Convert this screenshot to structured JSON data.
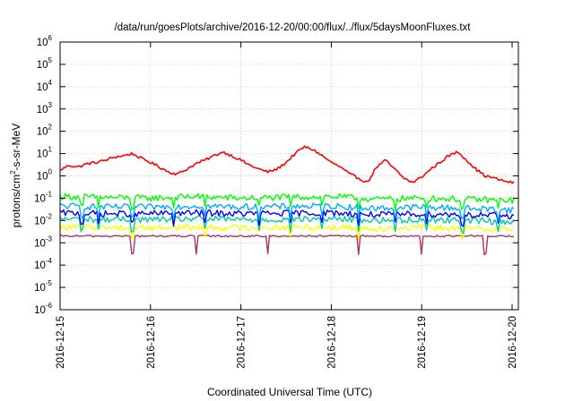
{
  "chart_data": {
    "type": "line",
    "title": "/data/run/goesPlots/archive/2016-12-20/00:00/flux/../flux/5daysMoonFluxes.txt",
    "xlabel": "Coordinated Universal Time (UTC)",
    "ylabel_parts": {
      "base": "protons/cm",
      "sup": "2",
      "rest": "-s-sr-MeV"
    },
    "x_ticks": [
      "2016-12-15",
      "2016-12-16",
      "2016-12-17",
      "2016-12-18",
      "2016-12-19",
      "2016-12-20"
    ],
    "x_range": [
      "2016-12-15",
      "2016-12-20 00:30"
    ],
    "y_scale": "log",
    "ylim": [
      1e-06,
      1000000.0
    ],
    "y_ticks": [
      {
        "base": "10",
        "exp": "-6"
      },
      {
        "base": "10",
        "exp": "-5"
      },
      {
        "base": "10",
        "exp": "-4"
      },
      {
        "base": "10",
        "exp": "-3"
      },
      {
        "base": "10",
        "exp": "-2"
      },
      {
        "base": "10",
        "exp": "-1"
      },
      {
        "base": "10",
        "exp": "0"
      },
      {
        "base": "10",
        "exp": "1"
      },
      {
        "base": "10",
        "exp": "2"
      },
      {
        "base": "10",
        "exp": "3"
      },
      {
        "base": "10",
        "exp": "4"
      },
      {
        "base": "10",
        "exp": "5"
      },
      {
        "base": "10",
        "exp": "6"
      }
    ],
    "grid": true,
    "series": [
      {
        "color": "#ff0000",
        "x_days": [
          0,
          0.1,
          0.2,
          0.3,
          0.4,
          0.5,
          0.6,
          0.7,
          0.8,
          0.9,
          1.0,
          1.1,
          1.2,
          1.3,
          1.4,
          1.5,
          1.6,
          1.7,
          1.8,
          1.9,
          2.0,
          2.1,
          2.2,
          2.3,
          2.4,
          2.5,
          2.6,
          2.7,
          2.8,
          2.9,
          3.0,
          3.1,
          3.2,
          3.3,
          3.4,
          3.5,
          3.6,
          3.7,
          3.8,
          3.9,
          4.0,
          4.1,
          4.2,
          4.3,
          4.4,
          4.5,
          4.6,
          4.7,
          4.8,
          4.9,
          5.0
        ],
        "values": [
          1.8,
          3,
          2.5,
          3.5,
          4,
          5,
          7,
          8,
          10,
          6,
          4,
          2.5,
          1.5,
          1.2,
          2,
          3.5,
          5,
          8,
          12,
          8,
          5,
          3,
          2,
          1.5,
          2,
          4,
          10,
          20,
          15,
          8,
          4,
          2.5,
          1.2,
          0.8,
          0.5,
          2.5,
          5,
          2,
          0.8,
          0.5,
          0.9,
          2,
          4,
          8,
          12,
          5,
          2,
          1,
          0.8,
          0.6,
          0.5
        ],
        "spikes": []
      },
      {
        "color": "#00ff00",
        "x_days": [
          0,
          0.5,
          1,
          1.5,
          2,
          2.5,
          3,
          3.5,
          4,
          4.5,
          5
        ],
        "values": [
          0.12,
          0.11,
          0.1,
          0.12,
          0.1,
          0.11,
          0.12,
          0.09,
          0.1,
          0.09,
          0.08
        ],
        "spikes": [
          0.24,
          0.42,
          0.8,
          1.25,
          1.6,
          2.2,
          2.55,
          2.9,
          3.3,
          3.7,
          4.05,
          4.45,
          4.85
        ]
      },
      {
        "color": "#00aaff",
        "x_days": [
          0,
          0.5,
          1,
          1.5,
          2,
          2.5,
          3,
          3.5,
          4,
          4.5,
          5
        ],
        "values": [
          0.045,
          0.04,
          0.04,
          0.045,
          0.04,
          0.042,
          0.045,
          0.035,
          0.04,
          0.035,
          0.03
        ],
        "spikes": [
          0.24,
          0.42,
          0.8,
          1.25,
          1.6,
          2.2,
          2.55,
          2.9,
          3.3,
          3.7,
          4.05,
          4.45,
          4.85
        ]
      },
      {
        "color": "#0000ff",
        "x_days": [
          0,
          0.5,
          1,
          1.5,
          2,
          2.5,
          3,
          3.5,
          4,
          4.5,
          5
        ],
        "values": [
          0.022,
          0.02,
          0.02,
          0.022,
          0.02,
          0.021,
          0.022,
          0.018,
          0.02,
          0.018,
          0.016
        ],
        "spikes": [
          0.24,
          0.42,
          0.8,
          1.25,
          1.6,
          2.2,
          2.55,
          2.9,
          3.3,
          3.7,
          4.05,
          4.45,
          4.85
        ]
      },
      {
        "color": "#00ccaa",
        "x_days": [
          0,
          0.5,
          1,
          1.5,
          2,
          2.5,
          3,
          3.5,
          4,
          4.5,
          5
        ],
        "values": [
          0.012,
          0.011,
          0.011,
          0.012,
          0.011,
          0.011,
          0.012,
          0.01,
          0.011,
          0.01,
          0.009
        ],
        "spikes": [
          0.24,
          0.42,
          0.8,
          1.25,
          1.6,
          2.2,
          2.55,
          2.9,
          3.3,
          3.7,
          4.05,
          4.45,
          4.85
        ]
      },
      {
        "color": "#ffff00",
        "x_days": [
          0,
          0.5,
          1,
          1.5,
          2,
          2.5,
          3,
          3.5,
          4,
          4.5,
          5
        ],
        "values": [
          0.005,
          0.005,
          0.0048,
          0.005,
          0.0048,
          0.005,
          0.005,
          0.0045,
          0.0048,
          0.0045,
          0.0042
        ],
        "spikes": [
          0.8,
          1.6,
          2.55,
          3.3,
          4.45
        ]
      },
      {
        "color": "#aa3366",
        "x_days": [
          0,
          0.5,
          1,
          1.5,
          2,
          2.5,
          3,
          3.5,
          4,
          4.5,
          5
        ],
        "values": [
          0.002,
          0.002,
          0.002,
          0.002,
          0.002,
          0.002,
          0.002,
          0.002,
          0.002,
          0.002,
          0.002
        ],
        "spikes": [
          0.8,
          1.5,
          2.3,
          3.3,
          4.0,
          4.7
        ]
      }
    ]
  }
}
